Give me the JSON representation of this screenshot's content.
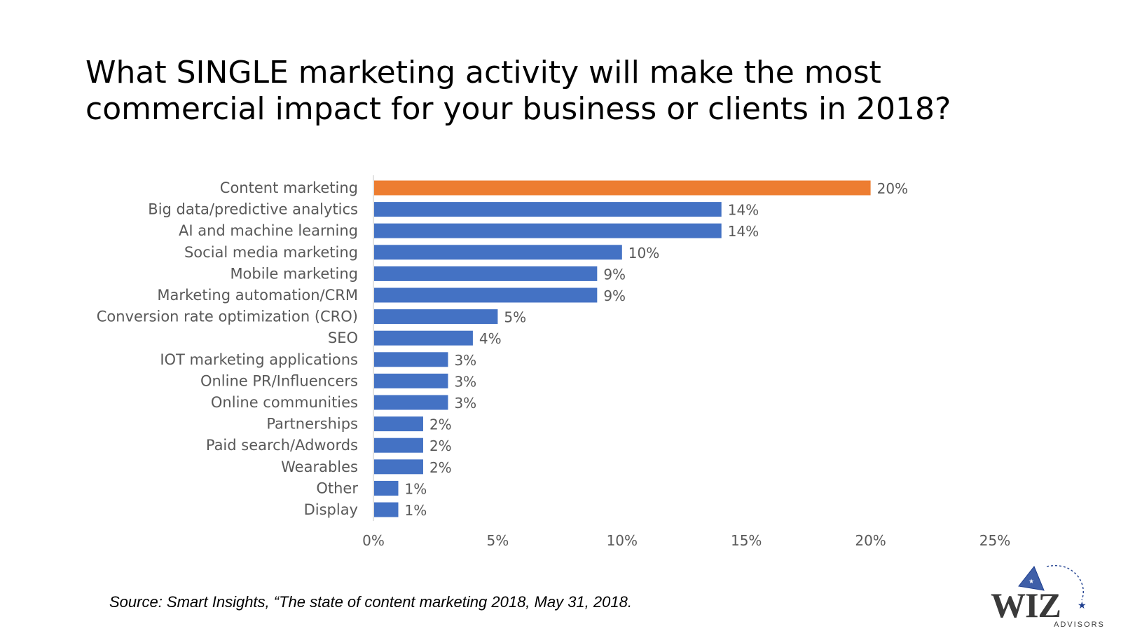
{
  "title_lines": [
    "What SINGLE marketing activity will make the most",
    "commercial impact for your business or clients in 2018?"
  ],
  "source": "Source:  Smart Insights, “The state of content marketing 2018, May 31, 2018.",
  "logo": {
    "wordmark": "WIZ",
    "subtext": "ADVISORS"
  },
  "colors": {
    "highlight": "#ED7D31",
    "bar": "#4472C4",
    "axis_text": "#595959",
    "axis_line": "#D9D9D9"
  },
  "chart_data": {
    "type": "bar",
    "orientation": "horizontal",
    "categories": [
      "Content marketing",
      "Big data/predictive analytics",
      "AI and machine learning",
      "Social media marketing",
      "Mobile marketing",
      "Marketing automation/CRM",
      "Conversion rate optimization (CRO)",
      "SEO",
      "IOT marketing applications",
      "Online PR/Influencers",
      "Online communities",
      "Partnerships",
      "Paid search/Adwords",
      "Wearables",
      "Other",
      "Display"
    ],
    "values": [
      20,
      14,
      14,
      10,
      9,
      9,
      5,
      4,
      3,
      3,
      3,
      2,
      2,
      2,
      1,
      1
    ],
    "data_labels": [
      "20%",
      "14%",
      "14%",
      "10%",
      "9%",
      "9%",
      "5%",
      "4%",
      "3%",
      "3%",
      "3%",
      "2%",
      "2%",
      "2%",
      "1%",
      "1%"
    ],
    "highlight_index": 0,
    "xlim": [
      0,
      25
    ],
    "xticks": [
      0,
      5,
      10,
      15,
      20,
      25
    ],
    "xtick_labels": [
      "0%",
      "5%",
      "10%",
      "15%",
      "20%",
      "25%"
    ],
    "grid": false,
    "legend": "none"
  }
}
